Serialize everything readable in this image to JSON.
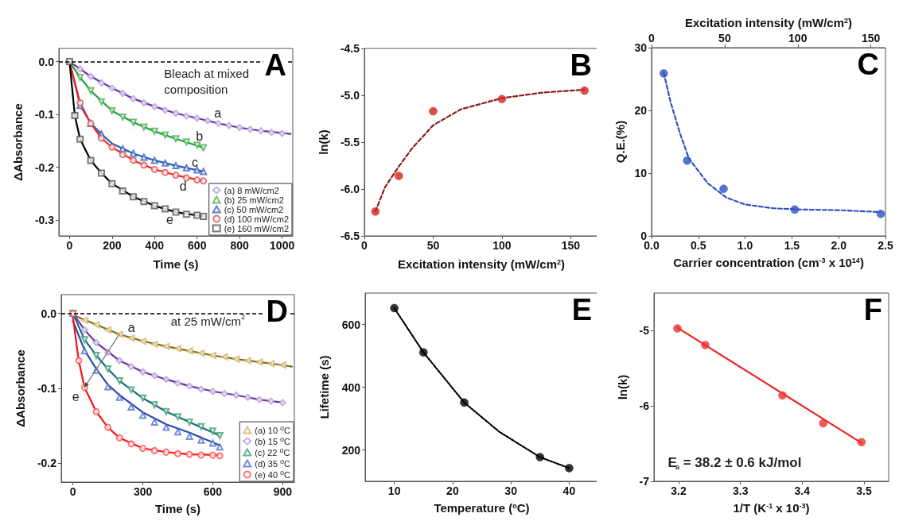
{
  "chart_data": [
    {
      "type": "scatter",
      "title": "A",
      "xlabel": "Time (s)",
      "ylabel": "ΔAbsorbance",
      "xlim": [
        -50,
        1050
      ],
      "xticks": [
        0,
        200,
        400,
        600,
        800,
        1000
      ],
      "ylim": [
        -0.33,
        0.025
      ],
      "yticks": [
        {
          "value": 0,
          "label": "0.0"
        },
        -0.1,
        -0.2,
        -0.3
      ],
      "legend": "bottom right",
      "ref_lines": [
        {
          "axis": "y",
          "value": 0,
          "color": "#000000",
          "line_style": "dashed"
        }
      ],
      "annotations": [
        "Bleach at mixed composition",
        "a",
        "b",
        "c",
        "d",
        "e"
      ],
      "series": [
        {
          "name": "(a) 8 mW/cm2",
          "type": "scatter",
          "marker": "diamond",
          "color": "#b39ddb",
          "x": [
            50,
            100,
            150,
            200,
            250,
            300,
            350,
            400,
            450,
            500,
            550,
            600,
            650,
            700,
            750,
            800,
            850,
            900,
            950,
            1000
          ],
          "values": [
            -0.014,
            -0.028,
            -0.04,
            -0.05,
            -0.06,
            -0.07,
            -0.078,
            -0.085,
            -0.092,
            -0.098,
            -0.103,
            -0.107,
            -0.112,
            -0.117,
            -0.121,
            -0.125,
            -0.128,
            -0.131,
            -0.134,
            -0.136
          ]
        },
        {
          "name": "(b) 25 mW/cm2",
          "type": "scatter",
          "marker": "triangle-down",
          "color": "#4caf50",
          "x": [
            50,
            100,
            150,
            200,
            250,
            300,
            350,
            400,
            450,
            500,
            550,
            600,
            630
          ],
          "values": [
            -0.03,
            -0.055,
            -0.076,
            -0.093,
            -0.105,
            -0.115,
            -0.124,
            -0.132,
            -0.139,
            -0.146,
            -0.152,
            -0.158,
            -0.163
          ]
        },
        {
          "name": "(c) 50 mW/cm2",
          "type": "scatter",
          "marker": "triangle",
          "color": "#4060c0",
          "x": [
            50,
            100,
            150,
            200,
            250,
            300,
            350,
            400,
            450,
            500,
            550,
            600,
            630
          ],
          "values": [
            -0.083,
            -0.117,
            -0.137,
            null,
            -0.165,
            -0.174,
            -0.181,
            -0.187,
            -0.192,
            -0.197,
            -0.201,
            -0.205,
            -0.208
          ]
        },
        {
          "name": "(d) 100 mW/cm2",
          "type": "scatter",
          "marker": "circle",
          "color": "#e05050",
          "x": [
            50,
            100,
            150,
            200,
            250,
            300,
            350,
            400,
            450,
            500,
            550,
            600,
            630
          ],
          "values": [
            -0.078,
            -0.117,
            -0.145,
            -0.162,
            -0.176,
            -0.187,
            -0.196,
            -0.204,
            -0.21,
            -0.215,
            -0.22,
            -0.224,
            -0.226
          ]
        },
        {
          "name": "(e) 160 mW/cm2",
          "type": "scatter",
          "marker": "square",
          "color": "#555555",
          "x": [
            0,
            25,
            50,
            100,
            150,
            200,
            250,
            300,
            350,
            400,
            450,
            500,
            550,
            600,
            630
          ],
          "values": [
            0,
            -0.102,
            -0.147,
            -0.187,
            -0.211,
            -0.231,
            -0.245,
            -0.256,
            -0.265,
            -0.273,
            -0.279,
            -0.285,
            -0.289,
            -0.291,
            -0.293
          ]
        },
        {
          "type": "line",
          "marker": "none",
          "line_style": "solid",
          "color": "#7030a0",
          "x": [
            0,
            50,
            100,
            200,
            300,
            400,
            500,
            600,
            700,
            800,
            900,
            1040
          ],
          "values": [
            0,
            -0.014,
            -0.028,
            -0.05,
            -0.07,
            -0.085,
            -0.098,
            -0.107,
            -0.117,
            -0.125,
            -0.131,
            -0.137
          ]
        },
        {
          "type": "line",
          "marker": "none",
          "line_style": "solid",
          "color": "#20a040",
          "x": [
            0,
            50,
            100,
            200,
            300,
            400,
            500,
            630
          ],
          "values": [
            0,
            -0.03,
            -0.055,
            -0.093,
            -0.115,
            -0.132,
            -0.146,
            -0.163
          ]
        },
        {
          "type": "line",
          "marker": "none",
          "line_style": "solid",
          "color": "#1f5fbf",
          "x": [
            0,
            50,
            100,
            150,
            200,
            300,
            400,
            500,
            630
          ],
          "values": [
            0,
            -0.083,
            -0.117,
            -0.137,
            -0.155,
            -0.174,
            -0.187,
            -0.197,
            -0.208
          ]
        },
        {
          "type": "line",
          "marker": "none",
          "line_style": "solid",
          "color": "#ff2020",
          "x": [
            0,
            50,
            100,
            150,
            200,
            300,
            400,
            500,
            630
          ],
          "values": [
            0,
            -0.078,
            -0.117,
            -0.145,
            -0.162,
            -0.187,
            -0.204,
            -0.215,
            -0.226
          ]
        },
        {
          "type": "line",
          "marker": "none",
          "line_style": "solid",
          "color": "#000000",
          "x": [
            0,
            25,
            50,
            100,
            150,
            200,
            300,
            400,
            500,
            630
          ],
          "values": [
            0,
            -0.102,
            -0.147,
            -0.187,
            -0.211,
            -0.231,
            -0.256,
            -0.273,
            -0.285,
            -0.293
          ]
        }
      ]
    },
    {
      "type": "scatter",
      "title": "B",
      "xlabel": "Excitation intensity (mW/cm$^{2}$)",
      "ylabel": "ln(k)",
      "xlim": [
        0,
        170
      ],
      "xticks": [
        0,
        50,
        100,
        150
      ],
      "ylim": [
        -6.5,
        -4.5
      ],
      "yticks": [
        -6.5,
        {
          "value": -6,
          "label": "-6.0"
        },
        -5.5,
        {
          "value": -5,
          "label": "-5.0"
        },
        -4.5
      ],
      "series": [
        {
          "type": "scatter",
          "color": "#d42020",
          "x": [
            8,
            25,
            50,
            100,
            160
          ],
          "values": [
            -6.24,
            -5.86,
            -5.17,
            -5.04,
            -4.95
          ]
        },
        {
          "type": "line",
          "marker": "none",
          "line_style": "dashed",
          "color": "#8b1a1a",
          "x": [
            8,
            15,
            25,
            35,
            50,
            70,
            100,
            130,
            160
          ],
          "values": [
            -6.24,
            -5.98,
            -5.76,
            -5.56,
            -5.32,
            -5.15,
            -5.03,
            -4.97,
            -4.94
          ]
        }
      ]
    },
    {
      "type": "scatter",
      "title": "C",
      "xlabel": "Carrier concentration (cm$^{-3}$ x 10$^{14}$)",
      "ylabel": "Q.E.(%)",
      "x2label": "Excitation intensity (mW/cm$^{2}$)",
      "xlim": [
        0,
        2.5
      ],
      "xticks": [
        {
          "value": 0,
          "label": "0.0"
        },
        0.5,
        {
          "value": 1,
          "label": "1.0"
        },
        1.5,
        {
          "value": 2,
          "label": "2.0"
        },
        2.5
      ],
      "x2lim": [
        0,
        160
      ],
      "x2ticks": [
        0,
        50,
        100,
        150
      ],
      "ylim": [
        0,
        30
      ],
      "yticks": [
        0,
        10,
        20,
        30
      ],
      "series": [
        {
          "type": "scatter",
          "color": "#3050c0",
          "x": [
            0.13,
            0.38,
            0.77,
            1.53,
            2.45
          ],
          "values": [
            25.9,
            12.0,
            7.5,
            4.2,
            3.5
          ]
        },
        {
          "type": "line",
          "marker": "none",
          "line_style": "dashed",
          "color": "#3050c0",
          "x": [
            0.13,
            0.2,
            0.3,
            0.4,
            0.6,
            0.8,
            1.0,
            1.3,
            1.6,
            2.0,
            2.44
          ],
          "values": [
            26,
            21.5,
            16.5,
            12.3,
            8.4,
            6.1,
            5.0,
            4.4,
            4.2,
            4.1,
            3.8
          ]
        }
      ]
    },
    {
      "type": "scatter",
      "title": "D",
      "xlabel": "Time (s)",
      "ylabel": "ΔAbsorbance",
      "xlim": [
        -50,
        950
      ],
      "xticks": [
        0,
        300,
        600,
        900
      ],
      "ylim": [
        -0.225,
        0.025
      ],
      "yticks": [
        {
          "value": 0,
          "label": "0.0"
        },
        -0.1,
        -0.2
      ],
      "legend": "bottom right",
      "ref_lines": [
        {
          "axis": "y",
          "value": 0,
          "color": "#000000",
          "line_style": "dashed"
        }
      ],
      "annotations": [
        "at 25 mW/cm$^{2}$",
        {
          "text": "a",
          "x": 200,
          "y": -0.028
        },
        {
          "text": "e",
          "x": 50,
          "y": -0.099
        }
      ],
      "series": [
        {
          "name": "(a) 10 $^{o}$C",
          "type": "scatter",
          "marker": "triangle-left",
          "color": "#d8b060",
          "x": [
            50,
            100,
            150,
            200,
            250,
            300,
            350,
            400,
            450,
            500,
            550,
            600,
            650,
            700,
            750,
            800,
            850,
            900
          ],
          "values": [
            -0.009,
            -0.015,
            -0.022,
            -0.028,
            -0.033,
            -0.037,
            -0.041,
            -0.044,
            -0.047,
            -0.05,
            -0.053,
            -0.056,
            -0.058,
            -0.061,
            -0.063,
            -0.065,
            -0.067,
            -0.069
          ]
        },
        {
          "name": "(b) 15 $^{o}$C",
          "type": "scatter",
          "marker": "diamond",
          "color": "#b39ddb",
          "x": [
            0,
            50,
            100,
            150,
            200,
            250,
            300,
            350,
            400,
            450,
            500,
            550,
            600,
            650,
            700,
            750,
            800,
            850,
            900
          ],
          "values": [
            0,
            -0.022,
            -0.039,
            -0.052,
            -0.063,
            -0.071,
            -0.078,
            -0.083,
            -0.088,
            -0.093,
            -0.097,
            -0.101,
            -0.104,
            -0.107,
            -0.109,
            -0.112,
            -0.115,
            -0.117,
            -0.119
          ]
        },
        {
          "name": "(c) 22 $^{o}$C",
          "type": "scatter",
          "marker": "triangle-down",
          "color": "#40a070",
          "x": [
            0,
            50,
            100,
            150,
            200,
            250,
            300,
            350,
            400,
            450,
            500,
            550,
            600,
            630
          ],
          "values": [
            0,
            -0.035,
            -0.056,
            -0.074,
            -0.09,
            -0.102,
            -0.113,
            -0.122,
            -0.131,
            -0.138,
            -0.145,
            -0.151,
            -0.157,
            -0.163
          ]
        },
        {
          "name": "(d) 35 $^{o}$C",
          "type": "scatter",
          "marker": "triangle",
          "color": "#5070d0",
          "x": [
            0,
            50,
            100,
            150,
            200,
            250,
            300,
            350,
            400,
            450,
            500,
            550,
            600,
            630
          ],
          "values": [
            0,
            -0.05,
            -0.076,
            -0.098,
            -0.112,
            -0.125,
            -0.136,
            -0.145,
            -0.152,
            -0.158,
            -0.164,
            -0.169,
            -0.173,
            -0.178
          ]
        },
        {
          "name": "(e) 40 $^{o}$C",
          "type": "scatter",
          "marker": "circle",
          "color": "#ff5050",
          "x": [
            0,
            25,
            50,
            100,
            150,
            200,
            250,
            300,
            350,
            400,
            450,
            500,
            550,
            600,
            630
          ],
          "values": [
            0,
            -0.063,
            -0.099,
            -0.131,
            -0.152,
            -0.166,
            -0.174,
            -0.18,
            -0.183,
            -0.185,
            -0.187,
            -0.188,
            -0.189,
            -0.189,
            -0.19
          ]
        },
        {
          "type": "line",
          "marker": "none",
          "line_style": "solid",
          "color": "#7a7020",
          "x": [
            0,
            100,
            200,
            300,
            400,
            500,
            600,
            700,
            800,
            900,
            940
          ],
          "values": [
            -0.002,
            -0.015,
            -0.028,
            -0.037,
            -0.044,
            -0.05,
            -0.056,
            -0.061,
            -0.065,
            -0.069,
            -0.071
          ]
        },
        {
          "type": "line",
          "marker": "none",
          "line_style": "solid",
          "color": "#7030a0",
          "x": [
            0,
            50,
            100,
            200,
            300,
            400,
            500,
            600,
            700,
            800,
            900
          ],
          "values": [
            0,
            -0.022,
            -0.039,
            -0.063,
            -0.078,
            -0.088,
            -0.097,
            -0.104,
            -0.109,
            -0.115,
            -0.119
          ]
        },
        {
          "type": "line",
          "marker": "none",
          "line_style": "solid",
          "color": "#1a6a8a",
          "x": [
            0,
            50,
            100,
            150,
            200,
            300,
            400,
            500,
            630
          ],
          "values": [
            0,
            -0.035,
            -0.056,
            -0.074,
            -0.09,
            -0.113,
            -0.131,
            -0.145,
            -0.163
          ]
        },
        {
          "type": "line",
          "marker": "none",
          "line_style": "solid",
          "color": "#2a4aaa",
          "x": [
            0,
            50,
            100,
            150,
            200,
            300,
            400,
            500,
            630
          ],
          "values": [
            -0.01,
            -0.049,
            -0.074,
            -0.095,
            -0.109,
            -0.132,
            -0.148,
            -0.159,
            -0.176
          ]
        },
        {
          "type": "line",
          "marker": "none",
          "line_style": "solid",
          "color": "#ff1010",
          "x": [
            0,
            25,
            50,
            100,
            150,
            200,
            300,
            400,
            500,
            630
          ],
          "values": [
            -0.005,
            -0.063,
            -0.099,
            -0.131,
            -0.152,
            -0.166,
            -0.18,
            -0.185,
            -0.188,
            -0.189
          ]
        }
      ]
    },
    {
      "type": "scatter",
      "title": "E",
      "xlabel": "Temperature ($^{o}$C)",
      "ylabel": "Lifetime (s)",
      "xlim": [
        5,
        45
      ],
      "xticks": [
        10,
        20,
        30,
        40
      ],
      "ylim": [
        100,
        700
      ],
      "yticks": [
        200,
        400,
        600
      ],
      "series": [
        {
          "type": "scatter",
          "color": "#000000",
          "x": [
            10,
            15,
            22,
            35,
            40
          ],
          "values": [
            652,
            511,
            351,
            177,
            142
          ]
        },
        {
          "type": "line",
          "marker": "none",
          "line_style": "dotted",
          "color": "#000000",
          "x": [
            10,
            15,
            22,
            28,
            35,
            40
          ],
          "values": [
            652,
            511,
            351,
            258,
            177,
            142
          ]
        }
      ]
    },
    {
      "type": "scatter",
      "title": "F",
      "xlabel": "1/T (K$^{-1}$ x 10$^{-3}$)",
      "ylabel": "ln(k)",
      "xlim": [
        3.16,
        3.54
      ],
      "xticks": [
        3.2,
        3.3,
        3.4,
        3.5
      ],
      "ylim": [
        -7,
        -4.5
      ],
      "yticks": [
        -7,
        -6,
        -5
      ],
      "annotations": [
        "E$_{a}$ = 38.2 ± 0.6 kJ/mol"
      ],
      "series": [
        {
          "type": "scatter",
          "color": "#ee3030",
          "x": [
            3.198,
            3.243,
            3.368,
            3.434,
            3.496
          ],
          "values": [
            -4.97,
            -5.19,
            -5.86,
            -6.23,
            -6.48
          ]
        },
        {
          "type": "line",
          "marker": "none",
          "line_style": "solid",
          "color": "#ee2020",
          "x": [
            3.198,
            3.496
          ],
          "values": [
            -4.96,
            -6.49
          ]
        }
      ]
    }
  ]
}
